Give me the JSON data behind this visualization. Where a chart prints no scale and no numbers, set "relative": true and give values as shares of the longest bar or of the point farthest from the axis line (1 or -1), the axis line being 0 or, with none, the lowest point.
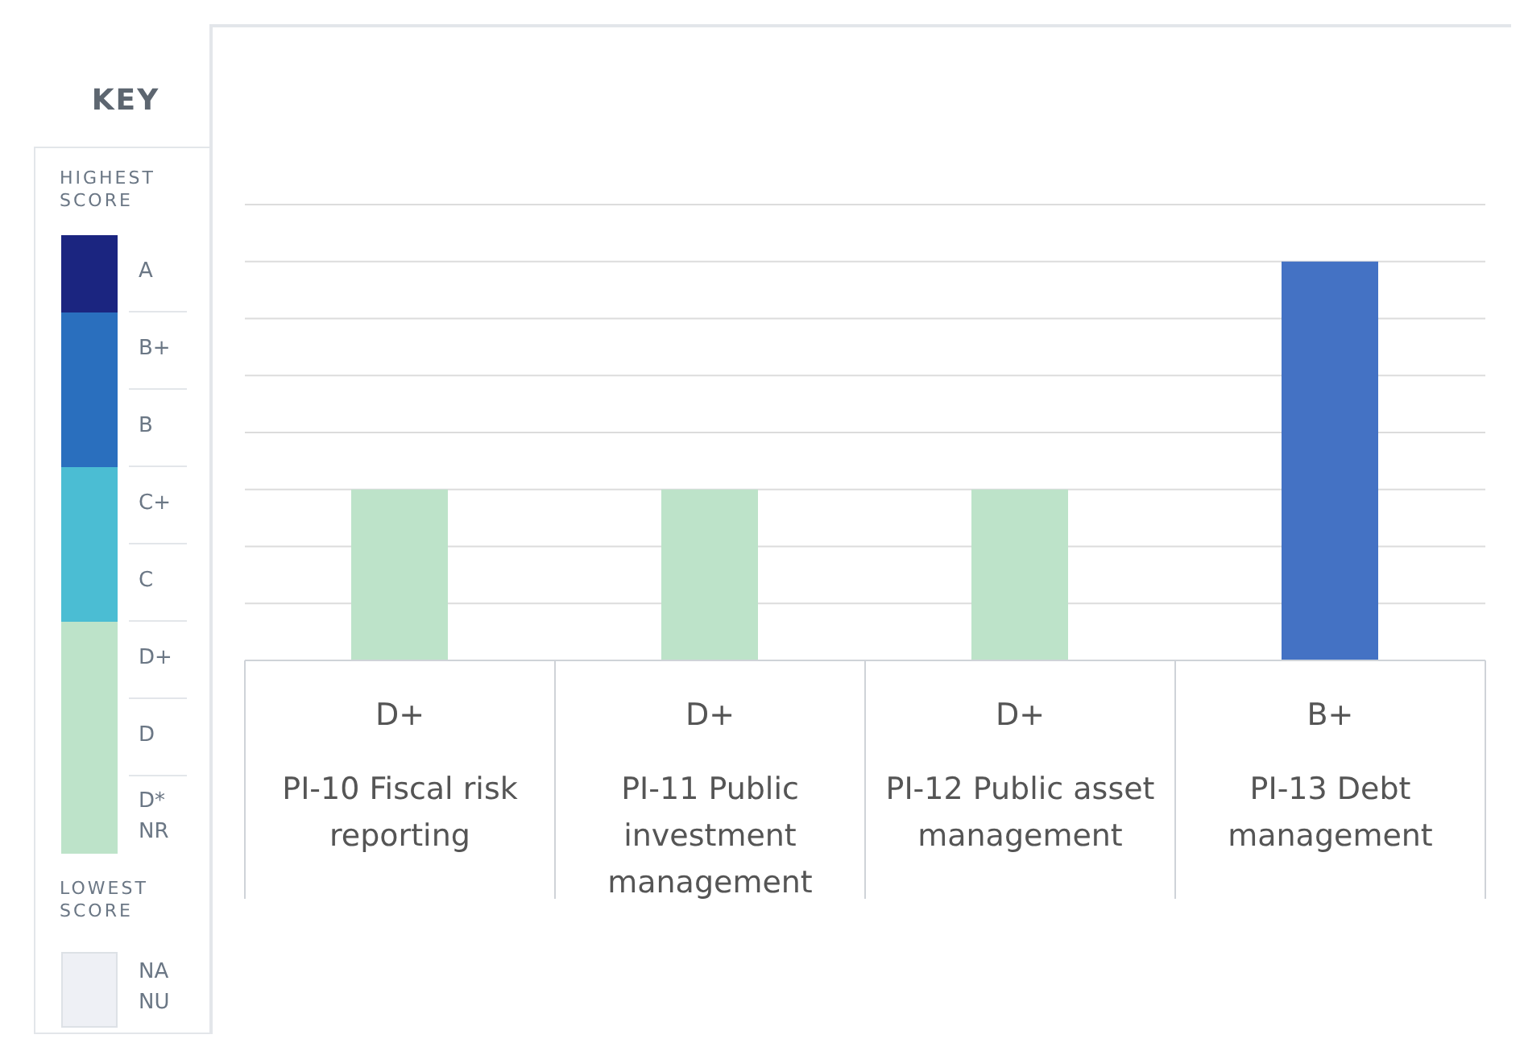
{
  "chart_data": {
    "type": "bar",
    "relative": true,
    "grid": "y",
    "categories": [
      "D+\nPI-10 Fiscal risk reporting",
      "D+\nPI-11 Public investment management",
      "D+\nPI-12 Public asset management",
      "B+\nPI-13 Debt management"
    ],
    "values": [
      0.4286,
      0.4286,
      0.4286,
      1
    ],
    "colors": [
      "#bde3c9",
      "#bde3c9",
      "#bde3c9",
      "#4472c4"
    ],
    "legend_title": "KEY",
    "annotations": [
      "HIGHEST SCORE",
      "A",
      "B+",
      "B",
      "C+",
      "C",
      "D+",
      "D",
      "D*",
      "NR",
      "LOWEST SCORE",
      "NA",
      "NU"
    ]
  }
}
